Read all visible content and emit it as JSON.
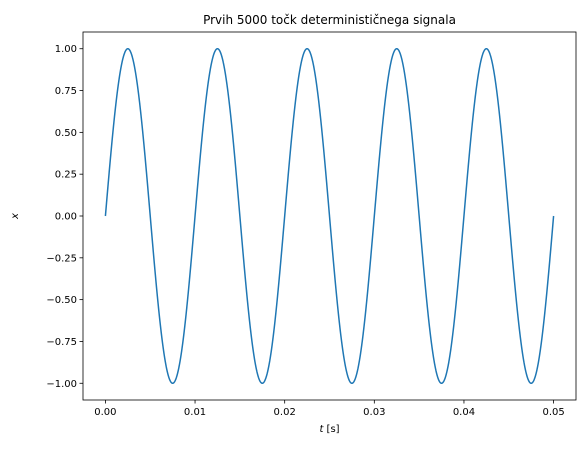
{
  "chart_data": {
    "type": "line",
    "title": "Prvih 5000 točk determinističnega signala",
    "xlabel": {
      "var": "t",
      "unit": "[s]"
    },
    "ylabel": "x",
    "xlim": [
      -0.0025,
      0.0525
    ],
    "ylim": [
      -1.1,
      1.1
    ],
    "xticks": [
      0.0,
      0.01,
      0.02,
      0.03,
      0.04,
      0.05
    ],
    "xtick_labels": [
      "0.00",
      "0.01",
      "0.02",
      "0.03",
      "0.04",
      "0.05"
    ],
    "yticks": [
      -1.0,
      -0.75,
      -0.5,
      -0.25,
      0.0,
      0.25,
      0.5,
      0.75,
      1.0
    ],
    "ytick_labels": [
      "−1.00",
      "−0.75",
      "−0.50",
      "−0.25",
      "0.00",
      "0.25",
      "0.50",
      "0.75",
      "1.00"
    ],
    "grid": false,
    "series": [
      {
        "function": "sin(2*pi*100*t)",
        "frequency_hz": 100,
        "amplitude": 1.0,
        "t_start": 0.0,
        "t_end": 0.05,
        "num_points": 5000,
        "color": "#1f77b4"
      }
    ]
  }
}
